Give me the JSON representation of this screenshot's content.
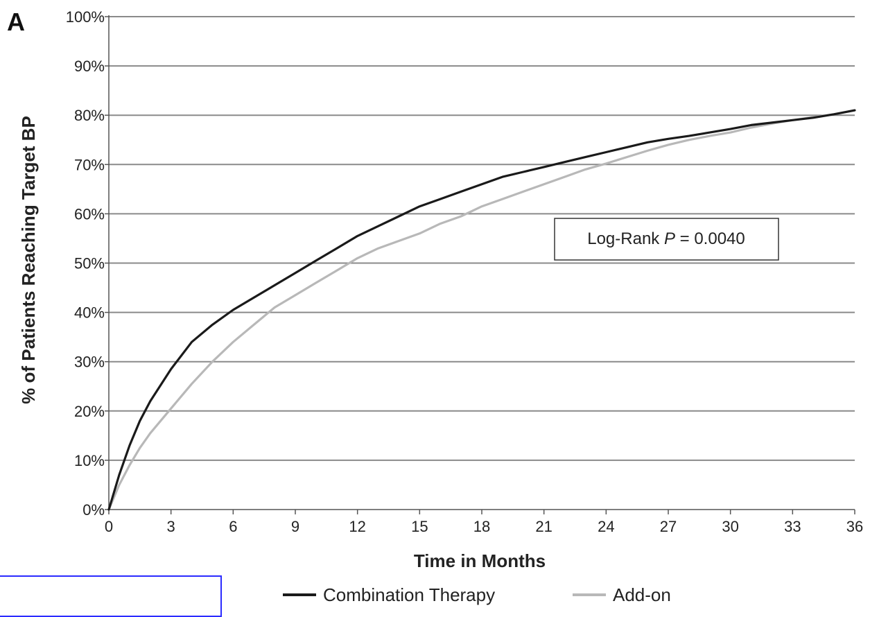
{
  "panel_label": "A",
  "annotation": {
    "prefix": "Log-Rank ",
    "p_symbol": "P",
    "value_text": " = 0.0040"
  },
  "chart_data": {
    "type": "line",
    "xlabel": "Time in Months",
    "ylabel": "% of Patients Reaching Target BP",
    "xlim": [
      0,
      36
    ],
    "ylim": [
      0,
      100
    ],
    "x_ticks": [
      "0",
      "3",
      "6",
      "9",
      "12",
      "15",
      "18",
      "21",
      "24",
      "27",
      "30",
      "33",
      "36"
    ],
    "y_ticks": [
      "0%",
      "10%",
      "20%",
      "30%",
      "40%",
      "50%",
      "60%",
      "70%",
      "80%",
      "90%",
      "100%"
    ],
    "grid": true,
    "legend_position": "bottom",
    "series": [
      {
        "name": "Combination Therapy",
        "color": "#1a1a1a",
        "x": [
          0,
          0.5,
          1,
          1.5,
          2,
          3,
          4,
          5,
          6,
          7,
          8,
          9,
          10,
          11,
          12,
          13,
          14,
          15,
          16,
          17,
          18,
          19,
          20,
          21,
          22,
          23,
          24,
          25,
          26,
          27,
          28,
          29,
          30,
          31,
          32,
          33,
          34,
          35,
          36
        ],
        "y": [
          0,
          7,
          13,
          18,
          22,
          28.5,
          34,
          37.5,
          40.5,
          43,
          45.5,
          48,
          50.5,
          53,
          55.5,
          57.5,
          59.5,
          61.5,
          63,
          64.5,
          66,
          67.5,
          68.5,
          69.5,
          70.5,
          71.5,
          72.5,
          73.5,
          74.5,
          75.2,
          75.8,
          76.5,
          77.2,
          78,
          78.5,
          79,
          79.5,
          80.2,
          81
        ]
      },
      {
        "name": "Add-on",
        "color": "#b8b8b8",
        "x": [
          0,
          0.5,
          1,
          1.5,
          2,
          3,
          4,
          5,
          6,
          7,
          8,
          9,
          10,
          11,
          12,
          13,
          14,
          15,
          16,
          17,
          18,
          19,
          20,
          21,
          22,
          23,
          24,
          25,
          26,
          27,
          28,
          29,
          30,
          31,
          32,
          33,
          34,
          35,
          36
        ],
        "y": [
          0,
          5,
          9,
          12.5,
          15.5,
          20.5,
          25.5,
          30,
          34,
          37.5,
          41,
          43.5,
          46,
          48.5,
          51,
          53,
          54.5,
          56,
          58,
          59.5,
          61.5,
          63,
          64.5,
          66,
          67.5,
          69,
          70.2,
          71.5,
          72.8,
          74,
          75,
          75.8,
          76.5,
          77.5,
          78.3,
          79,
          79.6,
          80.2,
          81
        ]
      }
    ]
  }
}
